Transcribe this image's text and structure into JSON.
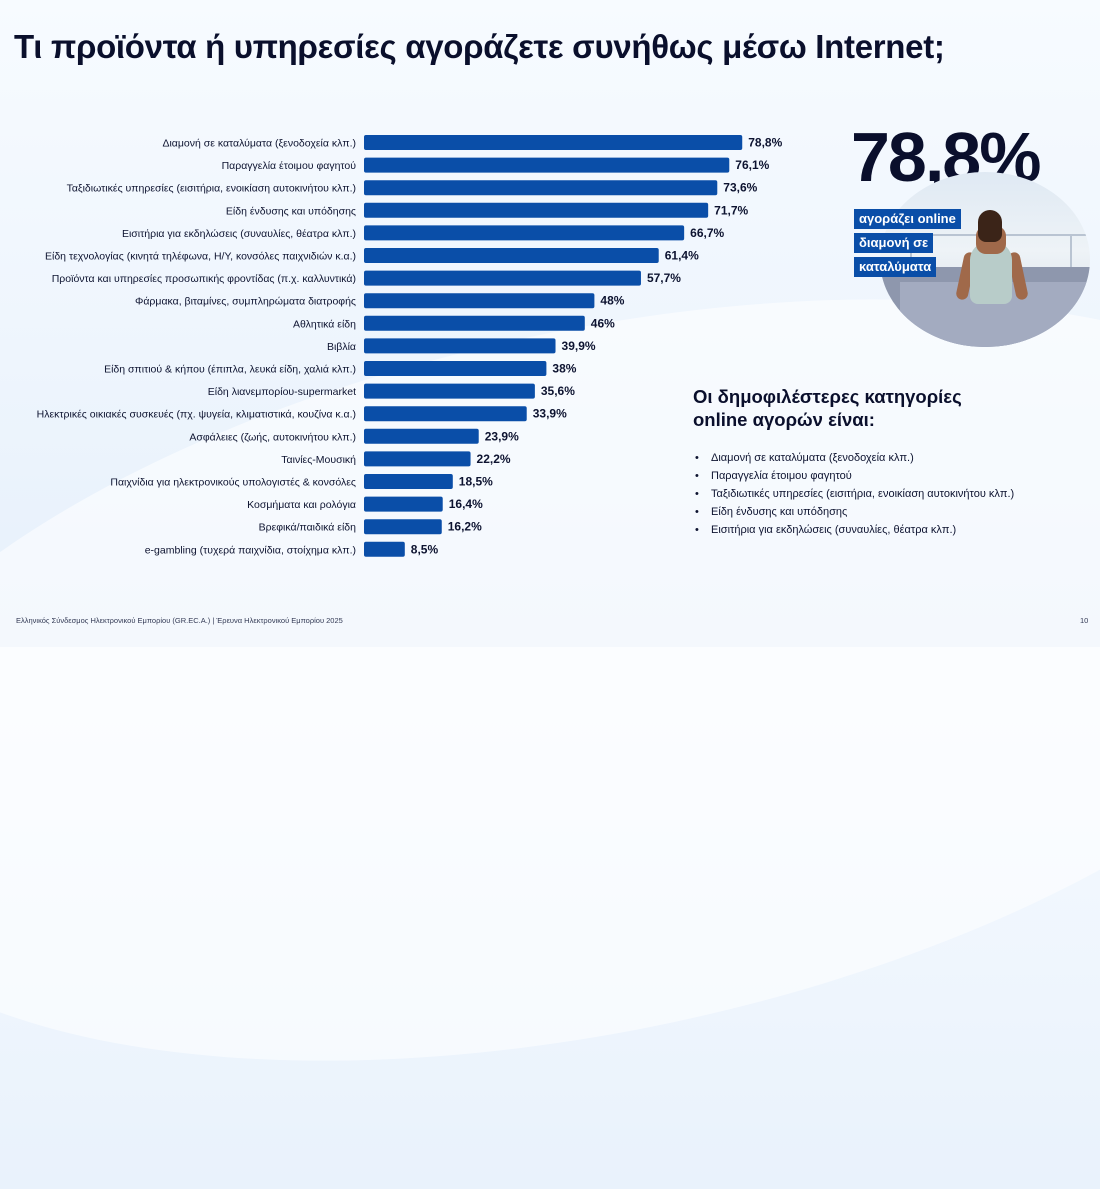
{
  "title": "Τι προϊόντα ή υπηρεσίες αγοράζετε συνήθως μέσω Internet;",
  "highlight": {
    "value": "78,8%",
    "tag_lines": [
      "αγοράζει online",
      "διαμονή σε",
      "καταλύματα"
    ]
  },
  "side": {
    "heading_line1": "Οι δημοφιλέστερες κατηγορίες",
    "heading_line2": "online αγορών είναι:",
    "bullets": [
      "Διαμονή σε καταλύματα (ξενοδοχεία κλπ.)",
      "Παραγγελία έτοιμου φαγητού",
      "Ταξιδιωτικές υπηρεσίες (εισιτήρια, ενοικίαση αυτοκινήτου κλπ.)",
      "Είδη ένδυσης και υπόδησης",
      "Εισιτήρια για εκδηλώσεις (συναυλίες, θέατρα κλπ.)"
    ]
  },
  "footer": "Ελληνικός Σύνδεσμος Ηλεκτρονικού Εμπορίου (GR.EC.A.) | Έρευνα Ηλεκτρονικού Εμπορίου 2025",
  "page_number": "10",
  "colors": {
    "bar": "#0a4ea8",
    "tag_bg": "#0a4ea8",
    "title": "#0a0f2c"
  },
  "chart_data": {
    "type": "bar",
    "orientation": "horizontal",
    "categories": [
      "Διαμονή σε καταλύματα (ξενοδοχεία κλπ.)",
      "Παραγγελία έτοιμου φαγητού",
      "Ταξιδιωτικές υπηρεσίες (εισιτήρια, ενοικίαση αυτοκινήτου κλπ.)",
      "Είδη ένδυσης και υπόδησης",
      "Εισιτήρια για εκδηλώσεις (συναυλίες, θέατρα κλπ.)",
      "Είδη τεχνολογίας (κινητά τηλέφωνα, Η/Υ, κονσόλες παιχνιδιών κ.α.)",
      "Προϊόντα και υπηρεσίες προσωπικής φροντίδας (π.χ. καλλυντικά)",
      "Φάρμακα, βιταμίνες, συμπληρώματα διατροφής",
      "Αθλητικά είδη",
      "Βιβλία",
      "Είδη σπιτιού & κήπου (έπιπλα, λευκά είδη, χαλιά κλπ.)",
      "Είδη λιανεμπορίου-supermarket",
      "Ηλεκτρικές οικιακές συσκευές (πχ. ψυγεία, κλιματιστικά, κουζίνα κ.α.)",
      "Ασφάλειες (ζωής, αυτοκινήτου κλπ.)",
      "Ταινίες-Μουσική",
      "Παιχνίδια για ηλεκτρονικούς υπολογιστές & κονσόλες",
      "Κοσμήματα και ρολόγια",
      "Βρεφικά/παιδικά είδη",
      "e-gambling (τυχερά παιχνίδια, στοίχημα κλπ.)"
    ],
    "values": [
      78.8,
      76.1,
      73.6,
      71.7,
      66.7,
      61.4,
      57.7,
      48,
      46,
      39.9,
      38,
      35.6,
      33.9,
      23.9,
      22.2,
      18.5,
      16.4,
      16.2,
      8.5
    ],
    "value_labels": [
      "78,8%",
      "76,1%",
      "73,6%",
      "71,7%",
      "66,7%",
      "61,4%",
      "57,7%",
      "48%",
      "46%",
      "39,9%",
      "38%",
      "35,6%",
      "33,9%",
      "23,9%",
      "22,2%",
      "18,5%",
      "16,4%",
      "16,2%",
      "8,5%"
    ],
    "xlim": [
      0,
      100
    ],
    "grid": false,
    "legend": "none"
  }
}
